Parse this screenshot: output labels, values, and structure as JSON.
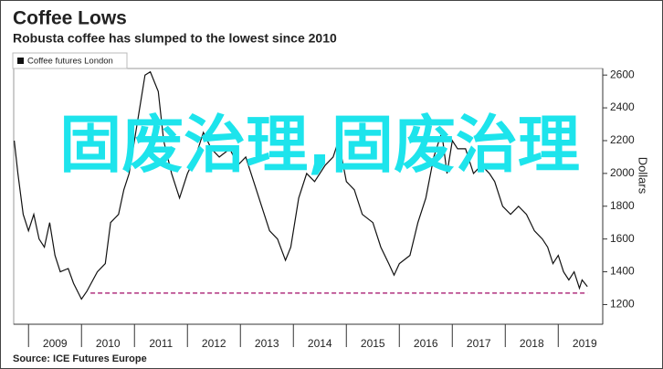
{
  "chart_data": {
    "type": "line",
    "title": "Coffee Lows",
    "subtitle": "Robusta coffee has slumped to the lowest since 2010",
    "y_axis_label": "Dollars",
    "source": "Source: ICE Futures Europe",
    "overlay_text": "固废治理,固废治理",
    "xlim": [
      2008.72,
      2019.84
    ],
    "xticks": [
      {
        "value": 2009,
        "label": "2009"
      },
      {
        "value": 2010,
        "label": "2010"
      },
      {
        "value": 2011,
        "label": "2011"
      },
      {
        "value": 2012,
        "label": "2012"
      },
      {
        "value": 2013,
        "label": "2013"
      },
      {
        "value": 2014,
        "label": "2014"
      },
      {
        "value": 2015,
        "label": "2015"
      },
      {
        "value": 2016,
        "label": "2016"
      },
      {
        "value": 2017,
        "label": "2017"
      },
      {
        "value": 2018,
        "label": "2018"
      },
      {
        "value": 2019,
        "label": "2019"
      }
    ],
    "ylim": [
      1080,
      2640
    ],
    "yticks": [
      1200,
      1400,
      1600,
      1800,
      2000,
      2200,
      2400,
      2600
    ],
    "grid": false,
    "legend": "top-left",
    "x": [
      2008.73,
      2008.8,
      2008.9,
      2009.0,
      2009.1,
      2009.2,
      2009.3,
      2009.4,
      2009.5,
      2009.6,
      2009.75,
      2009.85,
      2010.0,
      2010.1,
      2010.3,
      2010.45,
      2010.55,
      2010.7,
      2010.8,
      2010.9,
      2011.0,
      2011.1,
      2011.2,
      2011.3,
      2011.45,
      2011.55,
      2011.7,
      2011.85,
      2012.0,
      2012.15,
      2012.3,
      2012.45,
      2012.6,
      2012.8,
      2012.95,
      2013.1,
      2013.25,
      2013.4,
      2013.55,
      2013.7,
      2013.85,
      2013.95,
      2014.1,
      2014.25,
      2014.4,
      2014.6,
      2014.75,
      2014.85,
      2015.0,
      2015.15,
      2015.3,
      2015.5,
      2015.65,
      2015.8,
      2015.9,
      2016.0,
      2016.2,
      2016.35,
      2016.5,
      2016.65,
      2016.8,
      2016.9,
      2017.0,
      2017.1,
      2017.25,
      2017.4,
      2017.55,
      2017.7,
      2017.8,
      2017.95,
      2018.1,
      2018.25,
      2018.4,
      2018.55,
      2018.7,
      2018.8,
      2018.9,
      2019.0,
      2019.1,
      2019.2,
      2019.3,
      2019.4,
      2019.45,
      2019.55
    ],
    "series": [
      {
        "name": "Coffee futures London",
        "color": "#111111",
        "values": [
          2200,
          2000,
          1750,
          1650,
          1750,
          1600,
          1550,
          1700,
          1500,
          1400,
          1420,
          1330,
          1233,
          1280,
          1400,
          1450,
          1700,
          1750,
          1900,
          2000,
          2200,
          2400,
          2600,
          2620,
          2500,
          2200,
          2000,
          1850,
          2000,
          2100,
          2250,
          2150,
          2100,
          2150,
          2050,
          2100,
          1950,
          1800,
          1650,
          1600,
          1470,
          1550,
          1850,
          2000,
          1950,
          2050,
          2100,
          2200,
          1950,
          1900,
          1750,
          1700,
          1550,
          1450,
          1380,
          1450,
          1500,
          1700,
          1850,
          2100,
          2250,
          2000,
          2200,
          2150,
          2150,
          2000,
          2050,
          2000,
          1950,
          1800,
          1750,
          1800,
          1750,
          1650,
          1600,
          1550,
          1450,
          1500,
          1400,
          1350,
          1400,
          1300,
          1350,
          1310
        ]
      }
    ],
    "reference_line": {
      "value": 1270,
      "x": [
        2010.17,
        2019.55
      ],
      "color": "#b0307f"
    }
  }
}
